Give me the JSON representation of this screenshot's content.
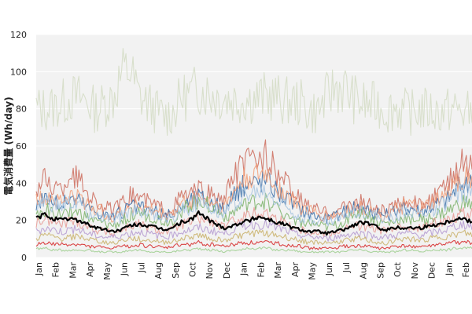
{
  "chart_data": {
    "type": "line",
    "title": "",
    "xlabel": "",
    "ylabel": "電気消費量 (Wh/day)",
    "ylim": [
      0,
      120
    ],
    "yticks": [
      0,
      20,
      40,
      60,
      80,
      100,
      120
    ],
    "x_tick_labels": [
      "Jan",
      "Feb",
      "Mar",
      "Apr",
      "May",
      "Jun",
      "Jul",
      "Aug",
      "Sep",
      "Oct",
      "Nov",
      "Dec",
      "Jan",
      "Feb",
      "Mar",
      "Apr",
      "May",
      "Jun",
      "Jul",
      "Aug",
      "Sep",
      "Oct",
      "Nov",
      "Dec",
      "Jan",
      "Feb"
    ],
    "grid": true,
    "legend": "none",
    "plot_background": "#f2f2f2",
    "series": [
      {
        "color": "#d4dcc4",
        "values": [
          80,
          80,
          81,
          83,
          86,
          86,
          84,
          79,
          83,
          86,
          99,
          101,
          87,
          83,
          79,
          76,
          78,
          86,
          88,
          91,
          89,
          87,
          86,
          85,
          85,
          85,
          86,
          87,
          86,
          84,
          84,
          83,
          78,
          79,
          86,
          92,
          91,
          86,
          83,
          82,
          82,
          79,
          81,
          79,
          78,
          80,
          79,
          78,
          79,
          80,
          78,
          78
        ]
      },
      {
        "color": "#cc6b5c",
        "values": [
          36,
          42,
          38,
          36,
          45,
          42,
          35,
          30,
          27,
          25,
          28,
          33,
          33,
          30,
          28,
          26,
          27,
          33,
          34,
          36,
          35,
          32,
          30,
          43,
          50,
          52,
          53,
          55,
          47,
          41,
          36,
          30,
          27,
          25,
          24,
          25,
          27,
          30,
          30,
          28,
          25,
          25,
          27,
          31,
          30,
          28,
          30,
          34,
          37,
          47,
          52,
          49
        ]
      },
      {
        "color": "#3b6ea8",
        "values": [
          28,
          33,
          30,
          28,
          32,
          31,
          27,
          25,
          23,
          22,
          24,
          27,
          27,
          25,
          24,
          22,
          23,
          28,
          30,
          33,
          31,
          28,
          26,
          32,
          38,
          40,
          41,
          42,
          37,
          33,
          29,
          26,
          24,
          22,
          21,
          22,
          24,
          28,
          27,
          25,
          23,
          23,
          24,
          27,
          27,
          25,
          27,
          29,
          31,
          36,
          40,
          38
        ]
      },
      {
        "color": "#f2a07a",
        "values": [
          30,
          34,
          32,
          30,
          33,
          32,
          29,
          26,
          24,
          22,
          24,
          28,
          28,
          26,
          25,
          23,
          24,
          29,
          30,
          32,
          31,
          29,
          27,
          34,
          41,
          43,
          44,
          45,
          39,
          35,
          31,
          27,
          25,
          23,
          22,
          23,
          24,
          27,
          27,
          25,
          23,
          23,
          25,
          28,
          28,
          26,
          28,
          31,
          33,
          40,
          44,
          42
        ]
      },
      {
        "color": "#7db36b",
        "values": [
          22,
          26,
          24,
          23,
          25,
          24,
          21,
          19,
          18,
          17,
          19,
          23,
          24,
          22,
          21,
          19,
          20,
          25,
          28,
          31,
          29,
          25,
          22,
          24,
          27,
          29,
          30,
          30,
          27,
          24,
          21,
          19,
          18,
          17,
          16,
          17,
          19,
          23,
          24,
          22,
          19,
          18,
          19,
          21,
          21,
          20,
          21,
          23,
          24,
          27,
          29,
          28
        ]
      },
      {
        "color": "#a8c6e0",
        "values": [
          26,
          30,
          28,
          27,
          29,
          28,
          25,
          22,
          21,
          20,
          22,
          25,
          26,
          24,
          23,
          21,
          22,
          26,
          27,
          30,
          29,
          26,
          24,
          28,
          33,
          34,
          35,
          35,
          31,
          28,
          25,
          22,
          21,
          20,
          19,
          20,
          22,
          25,
          25,
          24,
          21,
          21,
          22,
          25,
          25,
          23,
          25,
          27,
          29,
          33,
          35,
          34
        ]
      },
      {
        "color": "#e89a94",
        "values": [
          18,
          21,
          19,
          18,
          20,
          19,
          17,
          15,
          14,
          13,
          15,
          17,
          18,
          16,
          15,
          14,
          15,
          18,
          19,
          21,
          20,
          18,
          16,
          19,
          22,
          23,
          24,
          24,
          21,
          19,
          17,
          15,
          14,
          13,
          13,
          14,
          15,
          17,
          17,
          16,
          15,
          14,
          15,
          17,
          17,
          16,
          17,
          19,
          20,
          22,
          24,
          23
        ]
      },
      {
        "color": "#b59ad1",
        "values": [
          14,
          16,
          15,
          14,
          15,
          15,
          13,
          12,
          11,
          11,
          12,
          13,
          14,
          13,
          12,
          11,
          12,
          14,
          15,
          16,
          15,
          14,
          13,
          15,
          17,
          18,
          18,
          18,
          16,
          15,
          13,
          12,
          11,
          11,
          10,
          11,
          12,
          13,
          13,
          12,
          11,
          11,
          12,
          13,
          13,
          12,
          13,
          14,
          15,
          17,
          18,
          17
        ]
      },
      {
        "color": "#c9b16a",
        "values": [
          10,
          12,
          11,
          10,
          11,
          11,
          10,
          9,
          8,
          8,
          9,
          10,
          10,
          9,
          9,
          8,
          9,
          10,
          11,
          12,
          11,
          10,
          9,
          11,
          12,
          13,
          13,
          13,
          12,
          11,
          10,
          9,
          8,
          8,
          8,
          8,
          9,
          10,
          10,
          9,
          8,
          8,
          9,
          10,
          10,
          9,
          10,
          11,
          11,
          12,
          13,
          12
        ]
      },
      {
        "color": "#9fcf8f",
        "values": [
          5,
          5,
          4,
          4,
          4,
          4,
          4,
          3,
          3,
          3,
          3,
          4,
          4,
          3,
          3,
          3,
          3,
          4,
          4,
          5,
          4,
          4,
          3,
          4,
          4,
          5,
          5,
          5,
          4,
          4,
          4,
          3,
          3,
          3,
          3,
          3,
          3,
          4,
          4,
          3,
          3,
          3,
          3,
          4,
          4,
          3,
          4,
          4,
          4,
          5,
          5,
          5
        ]
      },
      {
        "color": "#d62728",
        "values": [
          7,
          8,
          7,
          7,
          7,
          7,
          6,
          6,
          5,
          5,
          6,
          6,
          7,
          6,
          6,
          5,
          6,
          7,
          7,
          8,
          7,
          7,
          6,
          7,
          8,
          8,
          8,
          8,
          8,
          7,
          6,
          6,
          5,
          5,
          5,
          5,
          6,
          6,
          6,
          6,
          5,
          5,
          6,
          6,
          6,
          6,
          6,
          7,
          7,
          8,
          8,
          8
        ]
      },
      {
        "color": "#000000",
        "bold": true,
        "values": [
          21,
          23,
          21,
          20,
          21,
          20,
          18,
          16,
          15,
          14,
          15,
          17,
          18,
          17,
          16,
          15,
          16,
          19,
          20,
          24,
          21,
          18,
          16,
          17,
          19,
          20,
          22,
          21,
          19,
          18,
          16,
          15,
          14,
          14,
          13,
          14,
          15,
          17,
          19,
          18,
          16,
          15,
          16,
          16,
          16,
          16,
          17,
          18,
          19,
          21,
          21,
          19
        ]
      }
    ]
  }
}
